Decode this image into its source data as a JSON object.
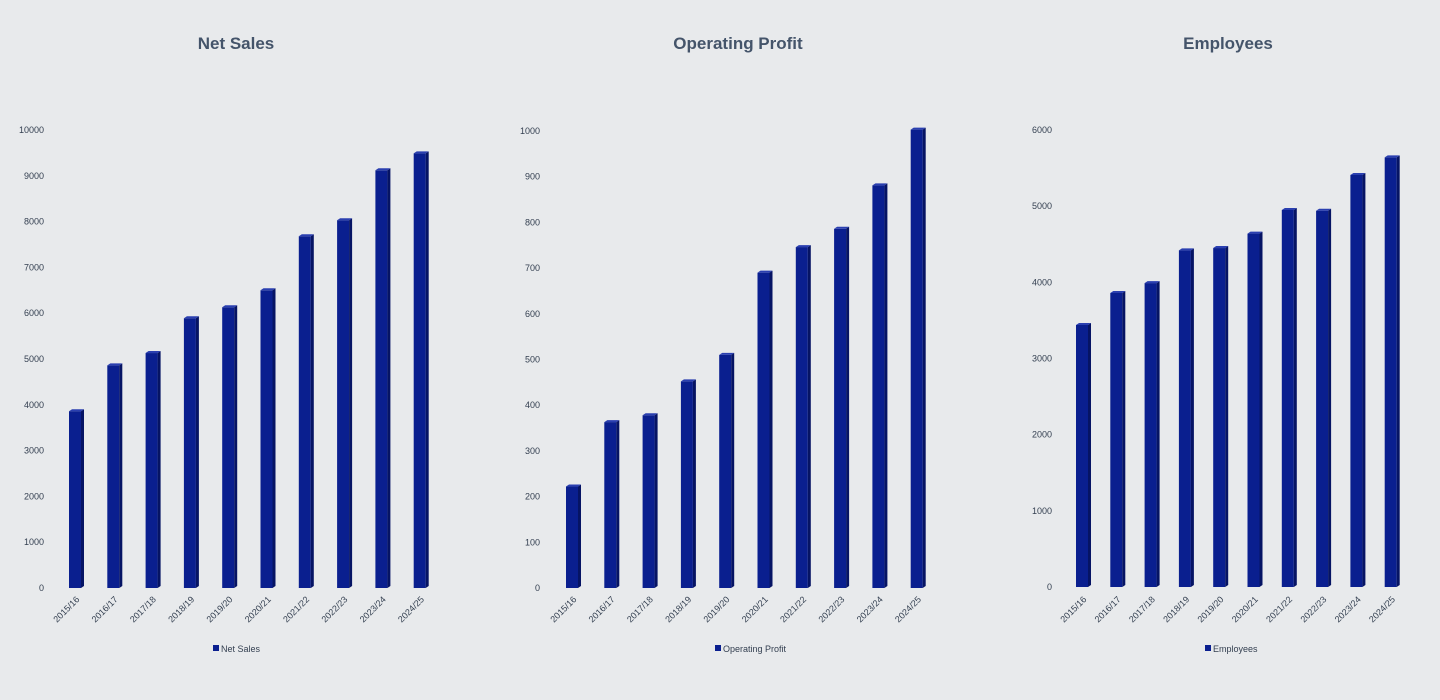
{
  "colors": {
    "bar": "#0a1f8f",
    "bar_side": "#061464",
    "bar_top": "#2a3fb0",
    "background": "#e8eaec",
    "text": "#44546a"
  },
  "chart_data": [
    {
      "type": "bar",
      "title": "Net Sales",
      "categories": [
        "2015/16",
        "2016/17",
        "2017/18",
        "2018/19",
        "2019/20",
        "2020/21",
        "2021/22",
        "2022/23",
        "2023/24",
        "2024/25"
      ],
      "series": [
        {
          "name": "Net Sales",
          "values": [
            3860,
            4860,
            5130,
            5890,
            6130,
            6500,
            7680,
            8030,
            9120,
            9490
          ]
        }
      ],
      "ylim": [
        0,
        10000
      ],
      "yticks": [
        "0",
        "1000",
        "2000",
        "3000",
        "4000",
        "5000",
        "6000",
        "7000",
        "8000",
        "9000",
        "10000"
      ],
      "grid": false,
      "legend": "bottom"
    },
    {
      "type": "bar",
      "title": "Operating Profit",
      "categories": [
        "2015/16",
        "2016/17",
        "2017/18",
        "2018/19",
        "2019/20",
        "2020/21",
        "2021/22",
        "2022/23",
        "2023/24",
        "2024/25"
      ],
      "series": [
        {
          "name": "Operating Profit",
          "values": [
            222,
            363,
            378,
            452,
            510,
            690,
            746,
            786,
            881,
            1003
          ]
        }
      ],
      "ylim": [
        0,
        1000
      ],
      "yticks": [
        "0",
        "100",
        "200",
        "300",
        "400",
        "500",
        "600",
        "700",
        "800",
        "900",
        "1000"
      ],
      "grid": false,
      "legend": "bottom"
    },
    {
      "type": "bar",
      "title": "Employees",
      "categories": [
        "2015/16",
        "2016/17",
        "2017/18",
        "2018/19",
        "2019/20",
        "2020/21",
        "2021/22",
        "2022/23",
        "2023/24",
        "2024/25"
      ],
      "series": [
        {
          "name": "Employees",
          "values": [
            3440,
            3860,
            3990,
            4420,
            4450,
            4640,
            4950,
            4940,
            5410,
            5640
          ]
        }
      ],
      "ylim": [
        0,
        6000
      ],
      "yticks": [
        "0",
        "1000",
        "2000",
        "3000",
        "4000",
        "5000",
        "6000"
      ],
      "grid": false,
      "legend": "bottom"
    }
  ]
}
